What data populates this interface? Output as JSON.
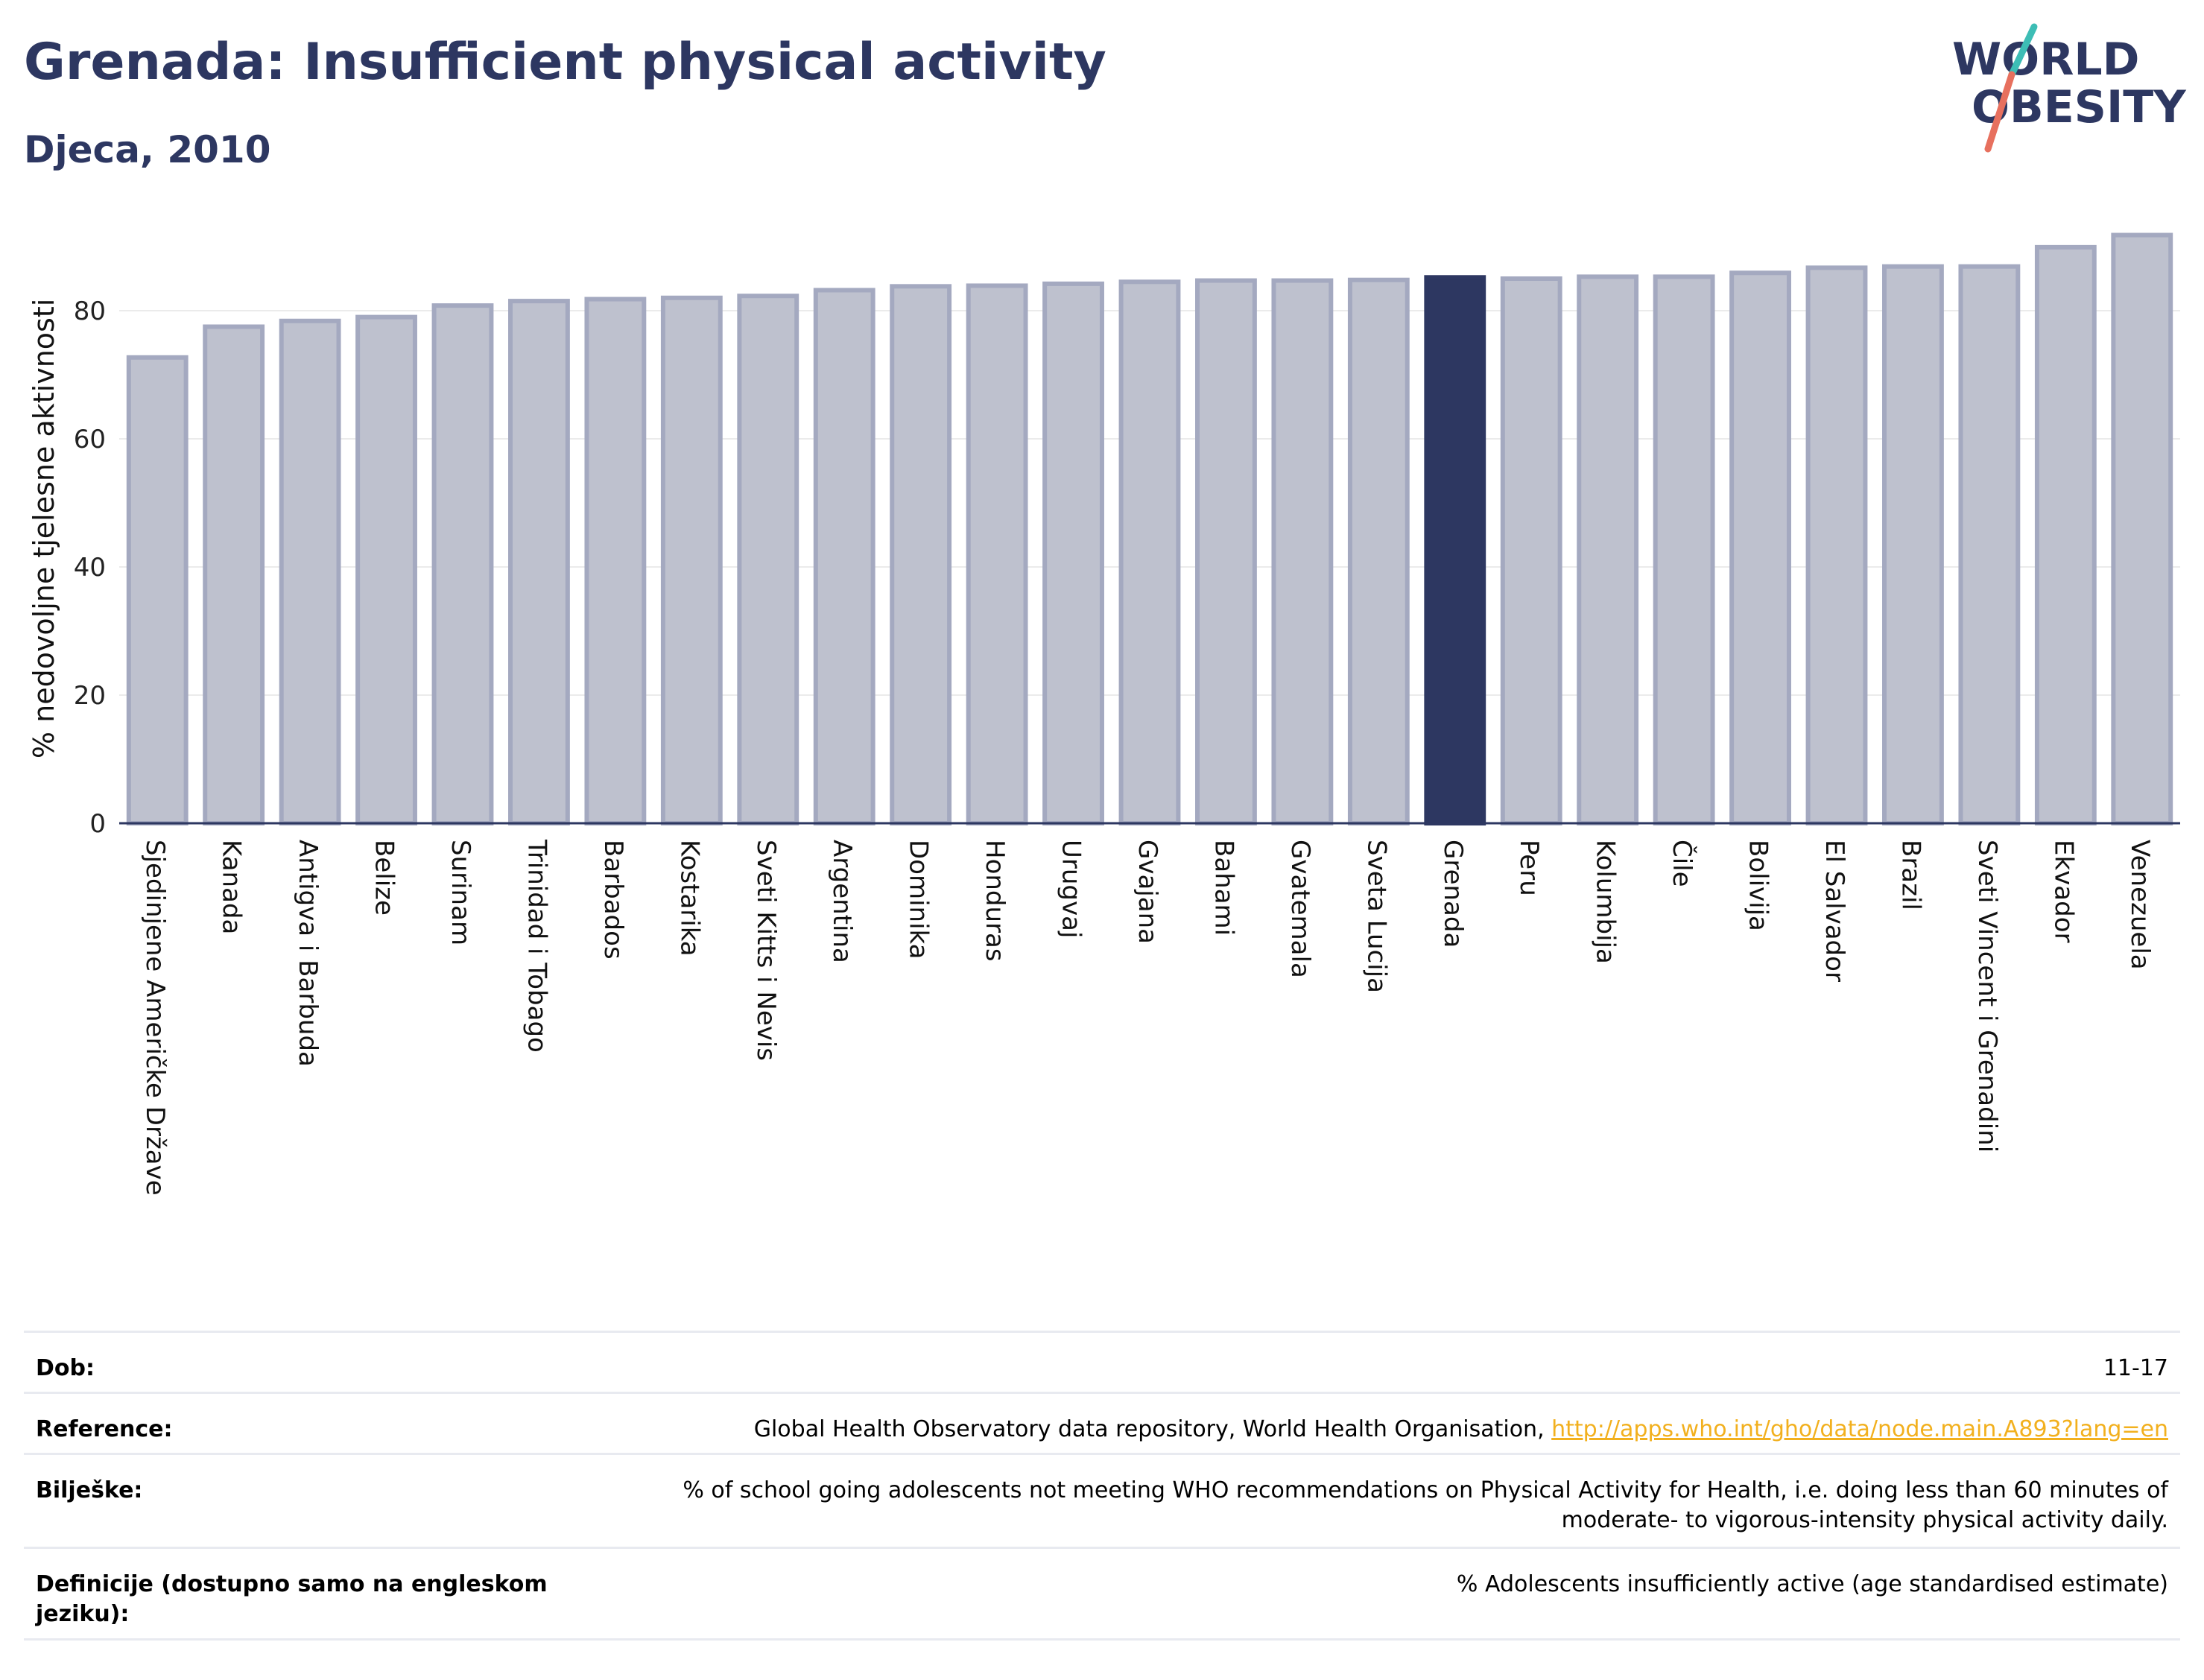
{
  "header": {
    "title": "Grenada: Insufficient physical activity",
    "subtitle": "Djeca, 2010"
  },
  "logo": {
    "line1": "WORLD",
    "line2": "OBESITY"
  },
  "colors": {
    "bar": "#bec1ce",
    "bar_stroke": "#a4a9c0",
    "highlight": "#2d3761",
    "grid": "#ebebeb",
    "axis": "#2d3761",
    "accent_teal": "#3dbdb5",
    "accent_red": "#e7705e"
  },
  "chart_data": {
    "type": "bar",
    "ylabel": "% nedovoljne tjelesne aktivnosti",
    "ylim": [
      0,
      92
    ],
    "yticks": [
      0,
      20,
      40,
      60,
      80
    ],
    "grid": true,
    "highlight": "Grenada",
    "categories": [
      "Sjedinjene Američke Države",
      "Kanada",
      "Antigva i Barbuda",
      "Belize",
      "Surinam",
      "Trinidad i Tobago",
      "Barbados",
      "Kostarika",
      "Sveti Kitts i Nevis",
      "Argentina",
      "Dominika",
      "Honduras",
      "Urugvaj",
      "Gvajana",
      "Bahami",
      "Gvatemala",
      "Sveta Lucija",
      "Grenada",
      "Peru",
      "Kolumbija",
      "Čile",
      "Bolivija",
      "El Salvador",
      "Brazil",
      "Sveti Vincent i Grenadini",
      "Ekvador",
      "Venezuela"
    ],
    "values": [
      72.7,
      77.5,
      78.4,
      79.0,
      80.8,
      81.5,
      81.8,
      82.0,
      82.3,
      83.2,
      83.8,
      83.9,
      84.2,
      84.5,
      84.7,
      84.7,
      84.8,
      85.2,
      85.0,
      85.3,
      85.3,
      85.9,
      86.7,
      86.9,
      86.9,
      89.9,
      91.8
    ]
  },
  "info": {
    "age_label": "Dob:",
    "age_value": "11-17",
    "reference_label": "Reference:",
    "reference_text": "Global Health Observatory data repository, World Health Organisation, ",
    "reference_link": "http://apps.who.int/gho/data/node.main.A893?lang=en",
    "notes_label": "Bilješke:",
    "notes_value": "% of school going adolescents not meeting WHO recommendations on Physical Activity for Health, i.e. doing less than 60 minutes of moderate- to vigorous-intensity physical activity daily.",
    "definitions_label": "Definicije (dostupno samo na engleskom jeziku):",
    "definitions_value": "% Adolescents insufficiently active (age standardised estimate)"
  }
}
